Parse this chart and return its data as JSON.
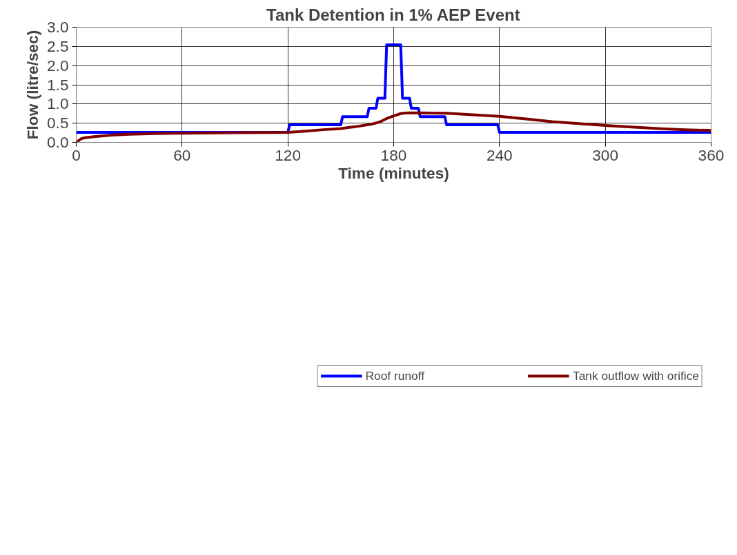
{
  "chart_data": {
    "type": "line",
    "title": "Tank Detention in 1% AEP Event",
    "xlabel": "Time (minutes)",
    "ylabel": "Flow (litre/sec)",
    "xlim": [
      0,
      360
    ],
    "xticks": [
      0,
      60,
      120,
      180,
      240,
      300,
      360
    ],
    "ylim": [
      0,
      3.0
    ],
    "yticks": [
      {
        "value": 0,
        "label": "0.0"
      },
      {
        "value": 0.5,
        "label": "0.5"
      },
      {
        "value": 1.0,
        "label": "1.0"
      },
      {
        "value": 1.5,
        "label": "1.5"
      },
      {
        "value": 2.0,
        "label": "2.0"
      },
      {
        "value": 2.5,
        "label": "2.5"
      },
      {
        "value": 3.0,
        "label": "3.0"
      }
    ],
    "grid": true,
    "legend": "bottom",
    "marker": "none",
    "line_style": "solid",
    "series": [
      {
        "name": "Roof runoff",
        "color": "#0000ff",
        "x": [
          0,
          120,
          121,
          150,
          151,
          165,
          166,
          170,
          171,
          175,
          176,
          184,
          185,
          189,
          190,
          194,
          195,
          209,
          210,
          239,
          240,
          360
        ],
        "values": [
          0.26,
          0.26,
          0.46,
          0.46,
          0.67,
          0.67,
          0.89,
          0.89,
          1.15,
          1.15,
          2.54,
          2.54,
          1.15,
          1.15,
          0.89,
          0.89,
          0.67,
          0.67,
          0.46,
          0.46,
          0.26,
          0.26
        ]
      },
      {
        "name": "Tank outflow with orifice",
        "color": "#800000",
        "x": [
          0,
          3,
          5,
          10,
          20,
          30,
          45,
          60,
          90,
          120,
          130,
          140,
          150,
          160,
          167,
          172,
          176,
          180,
          184,
          188,
          195,
          210,
          220,
          240,
          255,
          270,
          285,
          300,
          315,
          330,
          345,
          360
        ],
        "values": [
          0,
          0.1,
          0.12,
          0.15,
          0.19,
          0.21,
          0.23,
          0.24,
          0.25,
          0.26,
          0.29,
          0.33,
          0.36,
          0.42,
          0.47,
          0.53,
          0.62,
          0.69,
          0.75,
          0.77,
          0.77,
          0.76,
          0.73,
          0.68,
          0.61,
          0.54,
          0.49,
          0.44,
          0.4,
          0.36,
          0.33,
          0.31
        ]
      }
    ]
  }
}
